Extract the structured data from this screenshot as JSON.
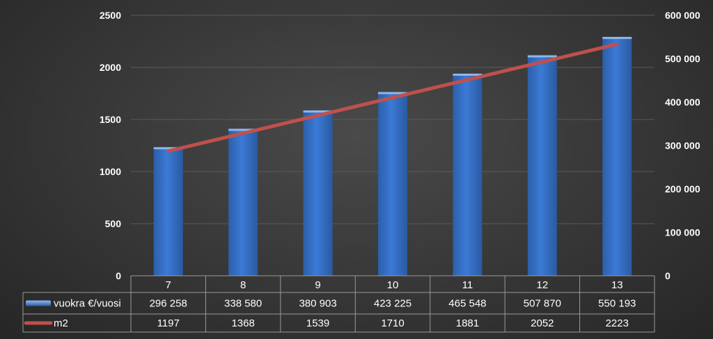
{
  "chart_data": {
    "type": "bar",
    "categories": [
      "7",
      "8",
      "9",
      "10",
      "11",
      "12",
      "13"
    ],
    "series": [
      {
        "name": "vuokra €/vuosi",
        "type": "bar",
        "axis": "right",
        "values": [
          296258,
          338580,
          380903,
          423225,
          465548,
          507870,
          550193
        ],
        "labels": [
          "296 258",
          "338 580",
          "380 903",
          "423 225",
          "465 548",
          "507 870",
          "550 193"
        ],
        "color": "#3b7ad6"
      },
      {
        "name": "m2",
        "type": "line",
        "axis": "left",
        "values": [
          1197,
          1368,
          1539,
          1710,
          1881,
          2052,
          2223
        ],
        "labels": [
          "1197",
          "1368",
          "1539",
          "1710",
          "1881",
          "2052",
          "2223"
        ],
        "color": "#c0504d"
      }
    ],
    "y_left": {
      "ylim": [
        0,
        2500
      ],
      "ticks": [
        "0",
        "500",
        "1000",
        "1500",
        "2000",
        "2500"
      ],
      "tick_values": [
        0,
        500,
        1000,
        1500,
        2000,
        2500
      ]
    },
    "y_right": {
      "ylim": [
        0,
        600000
      ],
      "ticks": [
        "0",
        "100 000",
        "200 000",
        "300 000",
        "400 000",
        "500 000",
        "600 000"
      ],
      "tick_values": [
        0,
        100000,
        200000,
        300000,
        400000,
        500000,
        600000
      ]
    },
    "grid": true,
    "legend": "data-table"
  }
}
